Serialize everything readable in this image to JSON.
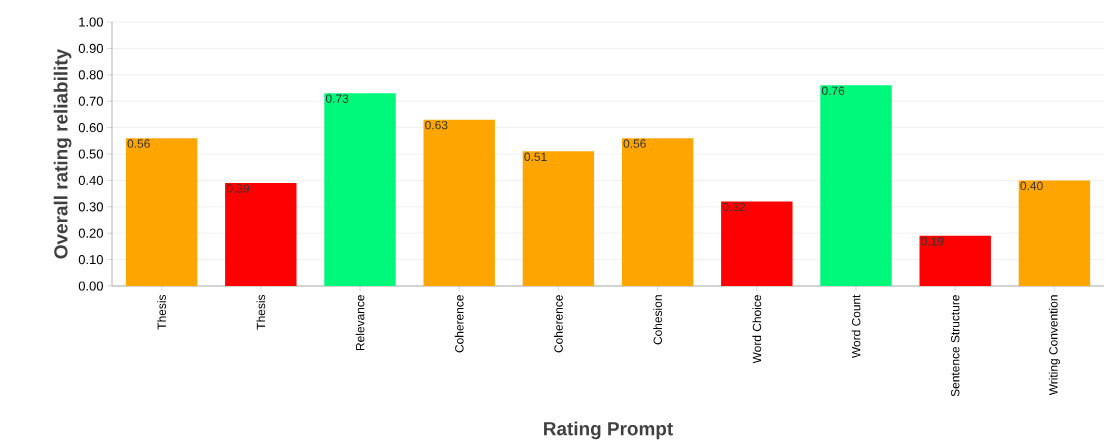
{
  "chart_data": {
    "type": "bar",
    "xlabel": "Rating Prompt",
    "ylabel": "Overall rating reliability",
    "categories": [
      "Thesis",
      "Thesis",
      "Relevance",
      "Coherence",
      "Coherence",
      "Cohesion",
      "Word Choice",
      "Word Count",
      "Sentence Structure",
      "Writing Convention"
    ],
    "values": [
      0.56,
      0.39,
      0.73,
      0.63,
      0.51,
      0.56,
      0.32,
      0.76,
      0.19,
      0.4
    ],
    "colors": [
      "#ffa500",
      "#ff0000",
      "#00f87a",
      "#ffa500",
      "#ffa500",
      "#ffa500",
      "#ff0000",
      "#00f87a",
      "#ff0000",
      "#ffa500"
    ],
    "value_labels": [
      "0.56",
      "0.39",
      "0.73",
      "0.63",
      "0.51",
      "0.56",
      "0.32",
      "0.76",
      "0.19",
      "0.40"
    ],
    "ylim": [
      0,
      1
    ],
    "yticks": [
      {
        "value": 0,
        "label": "0.00"
      },
      {
        "value": 0.1,
        "label": "0.10"
      },
      {
        "value": 0.2,
        "label": "0.20"
      },
      {
        "value": 0.3,
        "label": "0.30"
      },
      {
        "value": 0.4,
        "label": "0.40"
      },
      {
        "value": 0.5,
        "label": "0.50"
      },
      {
        "value": 0.6,
        "label": "0.60"
      },
      {
        "value": 0.7,
        "label": "0.70"
      },
      {
        "value": 0.8,
        "label": "0.80"
      },
      {
        "value": 0.9,
        "label": "0.90"
      },
      {
        "value": 1,
        "label": "1.00"
      }
    ],
    "grid": "y"
  }
}
